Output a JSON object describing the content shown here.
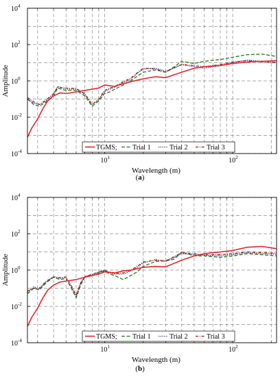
{
  "chart_data": [
    {
      "type": "line",
      "caption_open": "(",
      "caption_letter": "a",
      "caption_close": ")",
      "xlabel": "Wavelength (m)",
      "ylabel": "Amplitude",
      "xscale": "log",
      "yscale": "log",
      "xlim": [
        2.5,
        220
      ],
      "ylim": [
        0.0001,
        10000
      ],
      "grid": true,
      "legend_position": "bottom-right",
      "x_ticks": [
        {
          "value": 10,
          "base": "10",
          "exp": "1"
        },
        {
          "value": 100,
          "base": "10",
          "exp": "2"
        }
      ],
      "y_ticks": [
        {
          "value": 0.0001,
          "base": "10",
          "exp": "-4"
        },
        {
          "value": 0.01,
          "base": "10",
          "exp": "-2"
        },
        {
          "value": 1,
          "base": "10",
          "exp": "0"
        },
        {
          "value": 100,
          "base": "10",
          "exp": "2"
        },
        {
          "value": 10000,
          "base": "10",
          "exp": "4"
        }
      ],
      "series": [
        {
          "name": "TGMS;",
          "color": "#e8222a",
          "dash": "solid",
          "x": [
            2.5,
            2.7,
            3.0,
            3.3,
            3.6,
            4.0,
            4.5,
            5.0,
            6.0,
            7.0,
            8.0,
            9.0,
            10.0,
            12.0,
            14.0,
            16.0,
            20.0,
            25.0,
            30.0,
            40.0,
            50.0,
            60.0,
            80.0,
            100.0,
            130.0,
            170.0,
            220.0
          ],
          "y": [
            0.0008,
            0.0025,
            0.008,
            0.03,
            0.08,
            0.15,
            0.22,
            0.2,
            0.25,
            0.3,
            0.35,
            0.4,
            0.6,
            0.5,
            0.7,
            0.9,
            1.3,
            1.7,
            1.5,
            3.0,
            5.0,
            6.0,
            7.0,
            9.0,
            11.0,
            12.0,
            13.0
          ]
        },
        {
          "name": "Trial 1",
          "color": "#1a7a1a",
          "dash": "long-dash",
          "x": [
            2.5,
            2.8,
            3.1,
            3.5,
            4.0,
            4.3,
            5.0,
            6.0,
            7.0,
            8.0,
            9.0,
            10.0,
            11.0,
            12.0,
            14.0,
            16.0,
            18.0,
            20.0,
            25.0,
            30.0,
            35.0,
            40.0,
            50.0,
            60.0,
            80.0,
            100.0,
            130.0,
            170.0,
            220.0
          ],
          "y": [
            0.1,
            0.05,
            0.04,
            0.07,
            0.15,
            0.4,
            0.3,
            0.3,
            0.15,
            0.04,
            0.08,
            0.2,
            0.25,
            0.35,
            0.6,
            1.0,
            1.8,
            3.0,
            4.0,
            3.0,
            6.0,
            12.0,
            9.0,
            12.0,
            15.0,
            20.0,
            28.0,
            30.0,
            22.0
          ]
        },
        {
          "name": "Trial 2",
          "color": "#1f2a8c",
          "dash": "dot",
          "x": [
            2.5,
            2.8,
            3.1,
            3.5,
            4.0,
            4.3,
            5.0,
            6.0,
            7.0,
            8.0,
            9.0,
            10.0,
            11.0,
            12.0,
            14.0,
            16.0,
            18.0,
            20.0,
            25.0,
            30.0,
            35.0,
            40.0,
            50.0,
            60.0,
            80.0,
            100.0,
            130.0,
            170.0,
            220.0
          ],
          "y": [
            0.1,
            0.06,
            0.05,
            0.08,
            0.18,
            0.5,
            0.35,
            0.35,
            0.18,
            0.05,
            0.09,
            0.25,
            0.35,
            0.45,
            0.8,
            1.2,
            2.5,
            4.5,
            5.0,
            3.5,
            5.0,
            8.0,
            6.0,
            5.0,
            7.0,
            10.0,
            14.0,
            12.0,
            11.0
          ]
        },
        {
          "name": "Trial 3",
          "color": "#a01818",
          "dash": "dash-dot",
          "x": [
            2.5,
            2.8,
            3.1,
            3.5,
            4.0,
            4.3,
            5.0,
            6.0,
            7.0,
            8.0,
            9.0,
            10.0,
            11.0,
            12.0,
            14.0,
            16.0,
            18.0,
            20.0,
            25.0,
            30.0,
            35.0,
            40.0,
            50.0,
            60.0,
            80.0,
            100.0,
            130.0,
            170.0,
            220.0
          ],
          "y": [
            0.12,
            0.07,
            0.05,
            0.09,
            0.2,
            0.45,
            0.4,
            0.38,
            0.2,
            0.05,
            0.1,
            0.3,
            0.4,
            0.5,
            0.9,
            1.4,
            2.8,
            5.0,
            4.5,
            3.0,
            5.5,
            8.0,
            7.0,
            6.0,
            8.0,
            11.0,
            13.0,
            11.0,
            10.0
          ]
        }
      ]
    },
    {
      "type": "line",
      "caption_open": "(",
      "caption_letter": "b",
      "caption_close": ")",
      "xlabel": "Wavelength (m)",
      "ylabel": "Amplitude",
      "xscale": "log",
      "yscale": "log",
      "xlim": [
        2.5,
        220
      ],
      "ylim": [
        0.0001,
        10000
      ],
      "grid": true,
      "legend_position": "bottom-right",
      "x_ticks": [
        {
          "value": 10,
          "base": "10",
          "exp": "1"
        },
        {
          "value": 100,
          "base": "10",
          "exp": "2"
        }
      ],
      "y_ticks": [
        {
          "value": 0.0001,
          "base": "10",
          "exp": "-4"
        },
        {
          "value": 0.01,
          "base": "10",
          "exp": "-2"
        },
        {
          "value": 1,
          "base": "10",
          "exp": "0"
        },
        {
          "value": 100,
          "base": "10",
          "exp": "2"
        },
        {
          "value": 10000,
          "base": "10",
          "exp": "4"
        }
      ],
      "series": [
        {
          "name": "TGMS;",
          "color": "#e8222a",
          "dash": "solid",
          "x": [
            2.5,
            2.7,
            3.0,
            3.3,
            3.6,
            4.0,
            4.5,
            5.0,
            6.0,
            7.0,
            8.0,
            9.0,
            10.0,
            12.0,
            14.0,
            16.0,
            20.0,
            25.0,
            30.0,
            40.0,
            50.0,
            60.0,
            80.0,
            100.0,
            130.0,
            170.0,
            220.0
          ],
          "y": [
            0.0008,
            0.0025,
            0.008,
            0.03,
            0.08,
            0.15,
            0.22,
            0.25,
            0.3,
            0.4,
            0.5,
            0.6,
            0.8,
            0.7,
            0.9,
            1.0,
            1.4,
            1.6,
            1.5,
            3.5,
            6.0,
            8.0,
            10.0,
            12.0,
            18.0,
            20.0,
            15.0
          ]
        },
        {
          "name": "Trial 1",
          "color": "#1a7a1a",
          "dash": "long-dash",
          "x": [
            2.5,
            2.8,
            3.1,
            3.5,
            4.0,
            4.5,
            5.0,
            5.5,
            6.0,
            6.5,
            7.0,
            8.0,
            9.0,
            10.0,
            11.0,
            12.0,
            14.0,
            16.0,
            18.0,
            20.0,
            25.0,
            30.0,
            35.0,
            40.0,
            50.0,
            60.0,
            80.0,
            100.0,
            130.0,
            170.0,
            220.0
          ],
          "y": [
            0.05,
            0.1,
            0.08,
            0.2,
            0.4,
            0.3,
            0.35,
            0.1,
            0.03,
            0.15,
            0.4,
            0.5,
            0.7,
            0.9,
            0.6,
            0.5,
            0.3,
            0.5,
            0.8,
            1.6,
            3.0,
            3.2,
            4.0,
            10.0,
            6.0,
            6.0,
            5.0,
            6.0,
            8.0,
            7.0,
            6.0
          ]
        },
        {
          "name": "Trial 2",
          "color": "#1f2a8c",
          "dash": "dot",
          "x": [
            2.5,
            2.8,
            3.1,
            3.5,
            4.0,
            4.5,
            5.0,
            5.5,
            6.0,
            6.5,
            7.0,
            8.0,
            9.0,
            10.0,
            11.0,
            12.0,
            14.0,
            16.0,
            18.0,
            20.0,
            25.0,
            30.0,
            35.0,
            40.0,
            50.0,
            60.0,
            80.0,
            100.0,
            130.0,
            170.0,
            220.0
          ],
          "y": [
            0.06,
            0.12,
            0.09,
            0.22,
            0.45,
            0.35,
            0.4,
            0.12,
            0.035,
            0.18,
            0.45,
            0.55,
            0.8,
            1.0,
            0.7,
            0.6,
            0.6,
            0.9,
            1.4,
            2.5,
            3.8,
            3.0,
            5.0,
            8.0,
            7.0,
            6.5,
            6.0,
            7.0,
            9.0,
            8.0,
            7.5
          ]
        },
        {
          "name": "Trial 3",
          "color": "#a01818",
          "dash": "dash-dot",
          "x": [
            2.5,
            2.8,
            3.1,
            3.5,
            4.0,
            4.5,
            5.0,
            5.5,
            6.0,
            6.5,
            7.0,
            8.0,
            9.0,
            10.0,
            11.0,
            12.0,
            14.0,
            16.0,
            18.0,
            20.0,
            25.0,
            30.0,
            35.0,
            40.0,
            50.0,
            60.0,
            80.0,
            100.0,
            130.0,
            170.0,
            220.0
          ],
          "y": [
            0.07,
            0.1,
            0.1,
            0.25,
            0.4,
            0.38,
            0.42,
            0.14,
            0.04,
            0.2,
            0.42,
            0.6,
            0.75,
            0.95,
            0.75,
            0.65,
            0.7,
            1.0,
            1.6,
            2.8,
            3.5,
            3.2,
            5.5,
            9.0,
            8.0,
            7.0,
            7.0,
            8.0,
            10.0,
            9.0,
            8.5
          ]
        }
      ]
    }
  ]
}
